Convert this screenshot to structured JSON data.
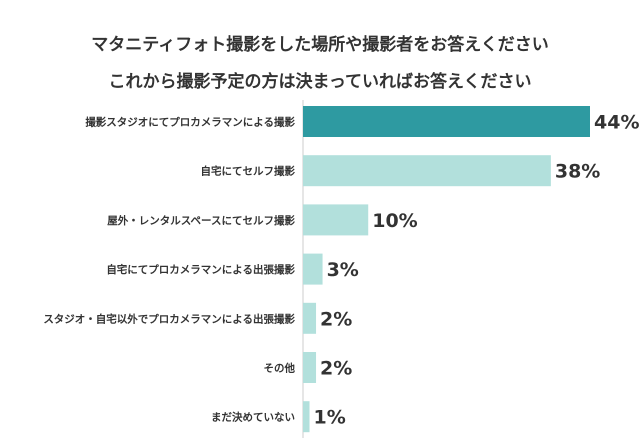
{
  "chart_data": {
    "type": "bar",
    "orientation": "horizontal",
    "title_lines": [
      "マタニティフォト撮影をした場所や撮影者をお答えください",
      "これから撮影予定の方は決まっていればお答えください"
    ],
    "categories": [
      "撮影スタジオにてプロカメラマンによる撮影",
      "自宅にてセルフ撮影",
      "屋外・レンタルスペースにてセルフ撮影",
      "自宅にてプロカメラマンによる出張撮影",
      "スタジオ・自宅以外でプロカメラマンによる出張撮影",
      "その他",
      "まだ決めていない"
    ],
    "values": [
      44,
      38,
      10,
      3,
      2,
      2,
      1
    ],
    "value_labels": [
      "44%",
      "38%",
      "10%",
      "3%",
      "2%",
      "2%",
      "1%"
    ],
    "xlim": [
      0,
      44
    ],
    "grid": false,
    "legend": "none",
    "colors": {
      "highlight": "#2e9aa1",
      "bar": "#b2e0dc",
      "axis": "#cccccc"
    }
  }
}
